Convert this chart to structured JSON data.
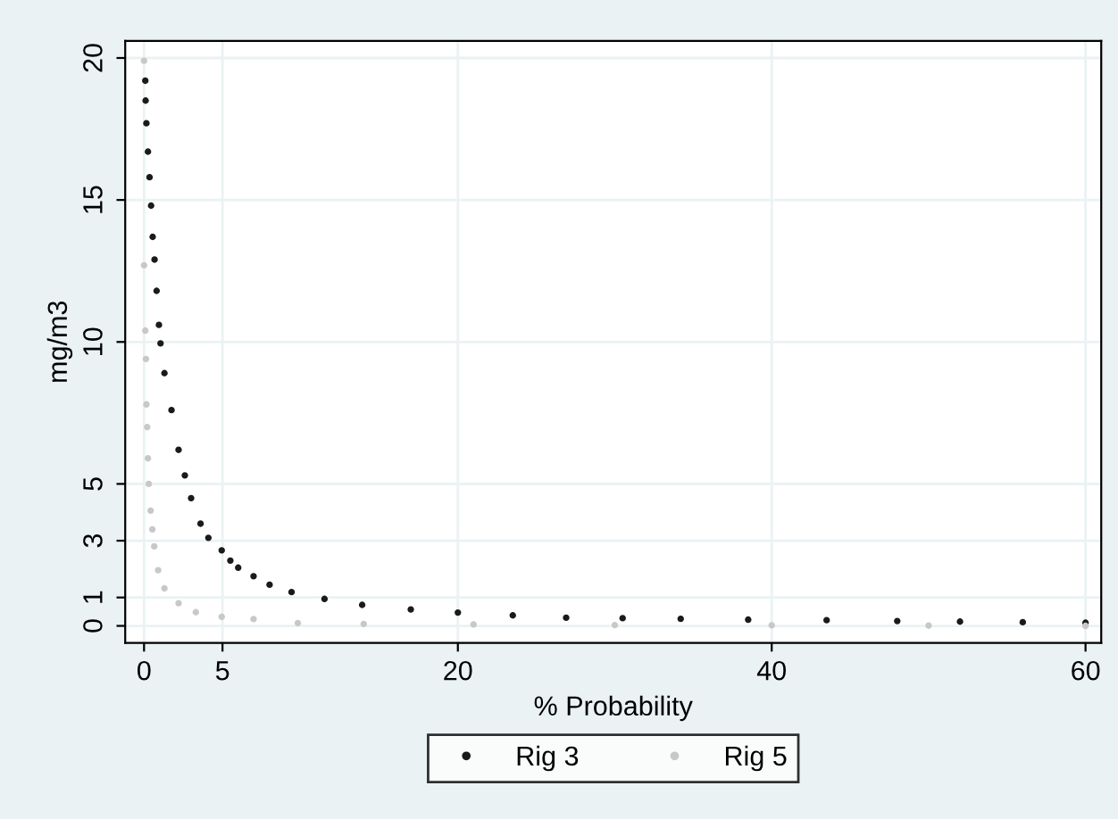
{
  "chart_data": {
    "type": "scatter",
    "xlabel": "% Probability",
    "ylabel": "mg/m3",
    "xlim": [
      -1.2,
      61
    ],
    "ylim": [
      -0.6,
      20.6
    ],
    "xticks": [
      0,
      5,
      20,
      40,
      60
    ],
    "yticks": [
      0,
      1,
      3,
      5,
      10,
      15,
      20
    ],
    "grid": true,
    "legend": "bottom",
    "marker": "circle",
    "series": [
      {
        "name": "Rig 3",
        "color": "#1a1a1a",
        "x": [
          0.08,
          0.1,
          0.15,
          0.25,
          0.35,
          0.45,
          0.55,
          0.67,
          0.8,
          0.95,
          1.05,
          1.3,
          1.75,
          2.2,
          2.6,
          3.0,
          3.6,
          4.1,
          4.95,
          5.5,
          6.0,
          6.98,
          8.0,
          9.4,
          11.5,
          13.9,
          17.0,
          20.0,
          23.5,
          26.9,
          30.5,
          34.2,
          38.5,
          43.5,
          48.0,
          52.0,
          56.0,
          60.0
        ],
        "values": [
          19.2,
          18.5,
          17.7,
          16.7,
          15.8,
          14.8,
          13.7,
          12.9,
          11.8,
          10.6,
          9.95,
          8.9,
          7.6,
          6.2,
          5.3,
          4.5,
          3.6,
          3.1,
          2.66,
          2.3,
          2.05,
          1.75,
          1.45,
          1.19,
          0.95,
          0.74,
          0.58,
          0.47,
          0.37,
          0.29,
          0.27,
          0.25,
          0.22,
          0.2,
          0.17,
          0.15,
          0.13,
          0.11
        ]
      },
      {
        "name": "Rig 5",
        "color": "#c8c8c8",
        "x": [
          0.0,
          0.0,
          0.08,
          0.12,
          0.15,
          0.2,
          0.25,
          0.3,
          0.42,
          0.53,
          0.65,
          0.9,
          1.3,
          2.2,
          3.3,
          4.95,
          6.98,
          9.8,
          14.0,
          21.0,
          30.0,
          40.0,
          50.0,
          60.0
        ],
        "values": [
          19.9,
          12.7,
          10.4,
          9.4,
          7.8,
          7.0,
          5.9,
          5.0,
          4.06,
          3.4,
          2.8,
          1.96,
          1.32,
          0.8,
          0.48,
          0.32,
          0.24,
          0.1,
          0.07,
          0.05,
          0.03,
          0.02,
          0.01,
          0.0
        ]
      }
    ]
  }
}
